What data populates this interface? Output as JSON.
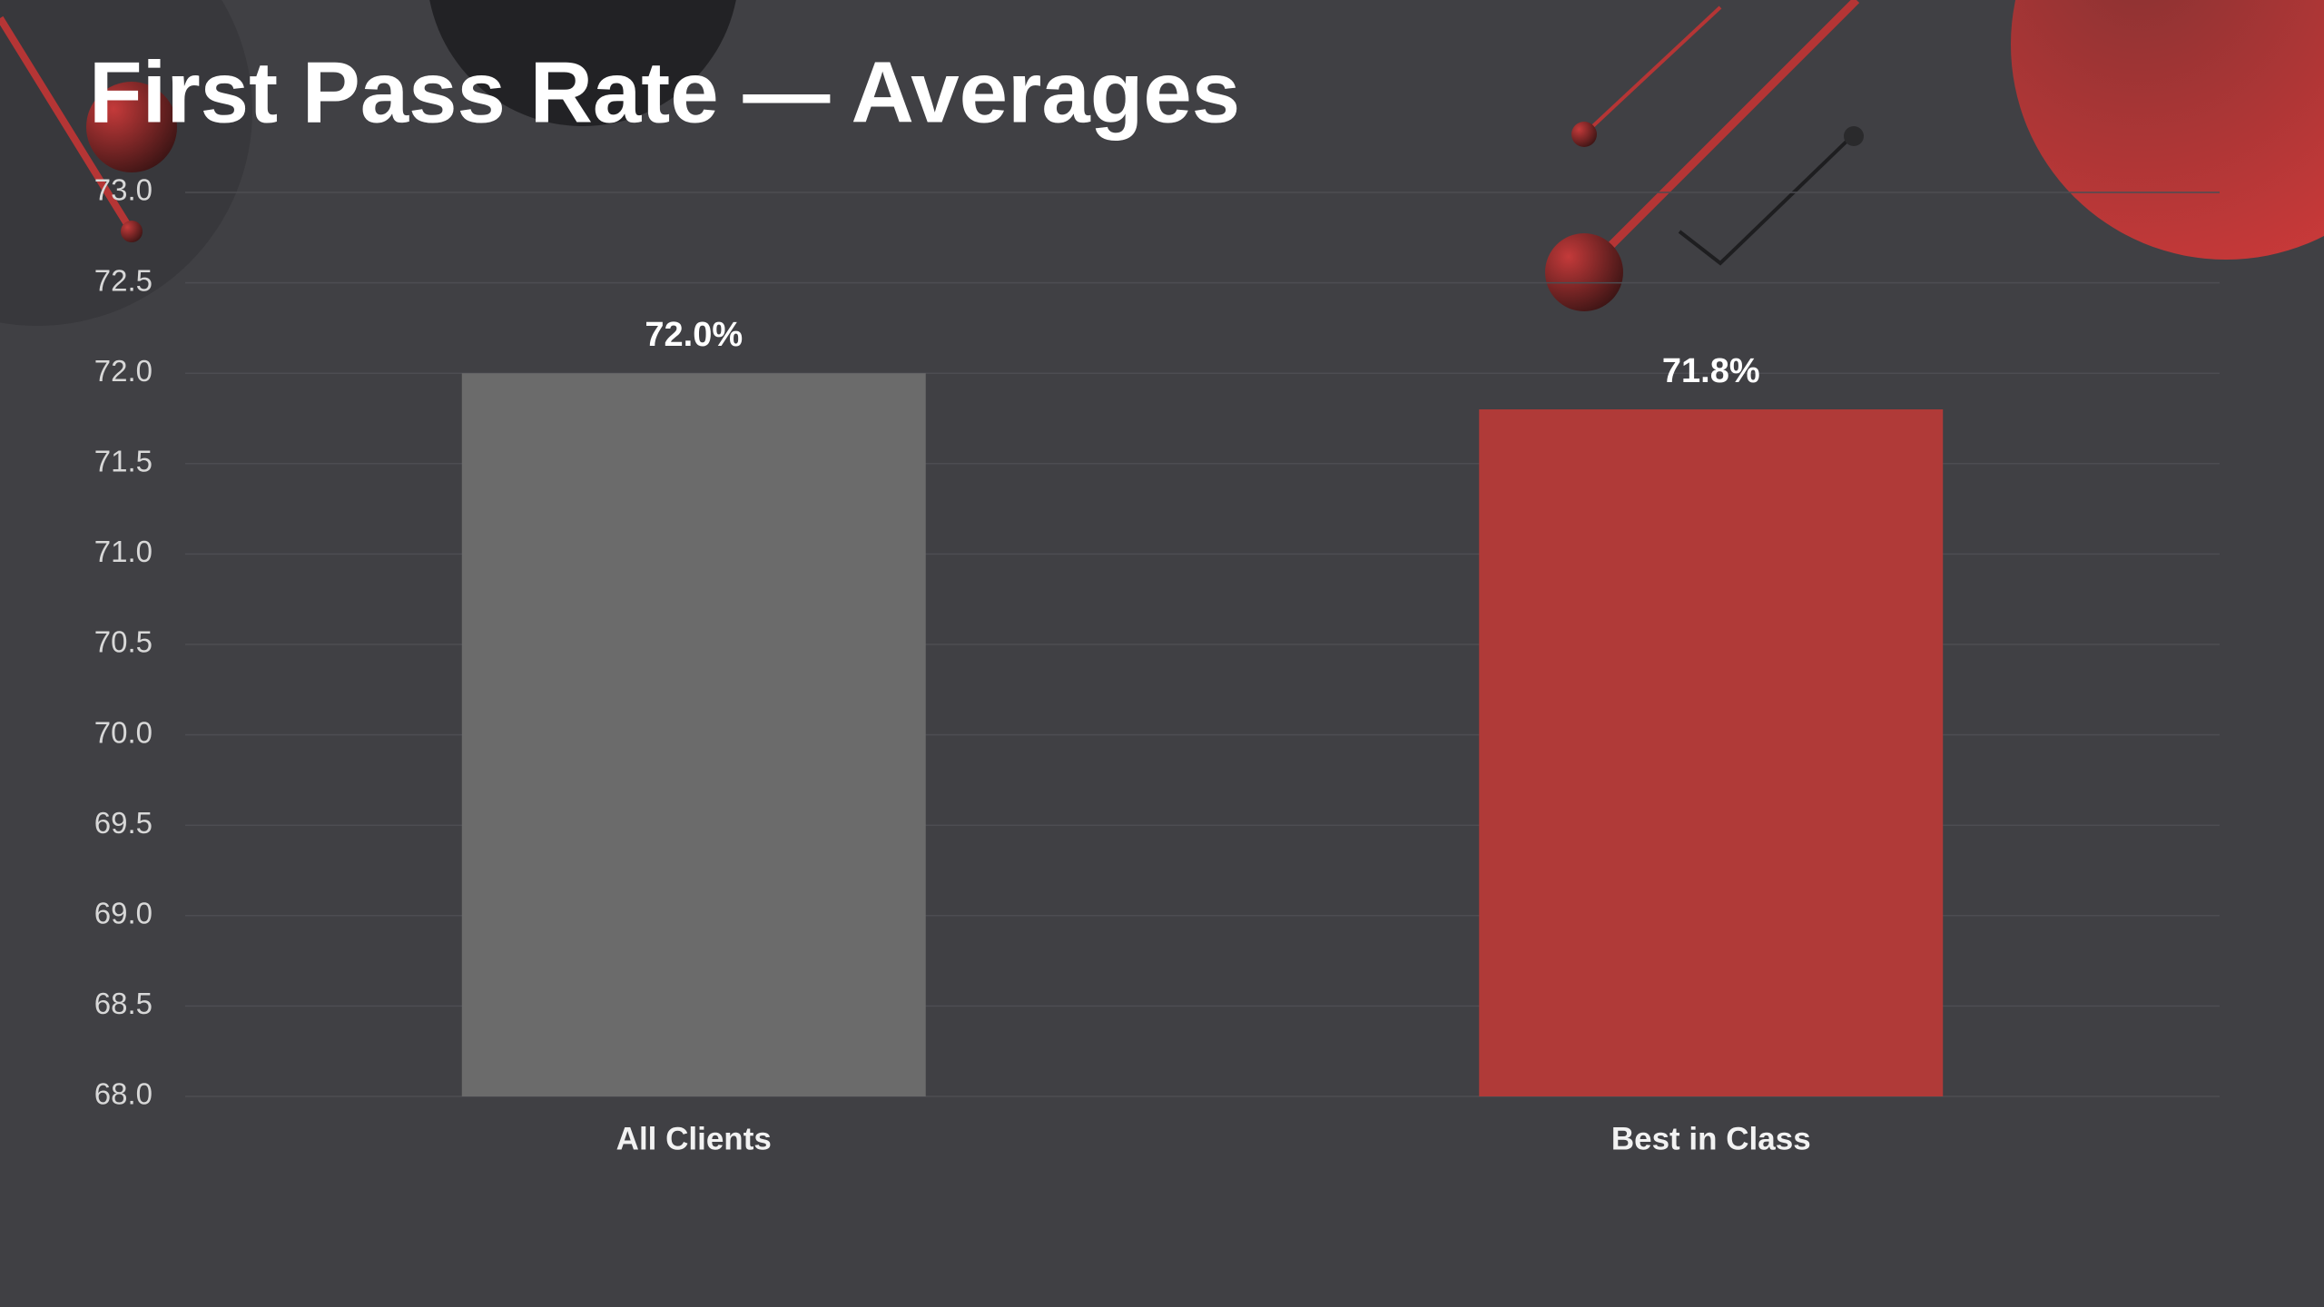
{
  "chart_data": {
    "type": "bar",
    "title": "First Pass Rate — Averages",
    "categories": [
      "All Clients",
      "Best in Class"
    ],
    "values": [
      72.0,
      71.8
    ],
    "value_labels": [
      "72.0%",
      "71.8%"
    ],
    "colors": [
      "#6b6b6b",
      "#b03a38"
    ],
    "ylim": [
      68,
      73
    ],
    "yticks": [
      {
        "value": 68,
        "label": "68.0"
      },
      {
        "value": 68.5,
        "label": "68.5"
      },
      {
        "value": 69,
        "label": "69.0"
      },
      {
        "value": 69.5,
        "label": "69.5"
      },
      {
        "value": 70,
        "label": "70.0"
      },
      {
        "value": 70.5,
        "label": "70.5"
      },
      {
        "value": 71,
        "label": "71.0"
      },
      {
        "value": 71.5,
        "label": "71.5"
      },
      {
        "value": 72,
        "label": "72.0"
      },
      {
        "value": 72.5,
        "label": "72.5"
      },
      {
        "value": 73,
        "label": "73.0"
      }
    ],
    "grid": true
  }
}
